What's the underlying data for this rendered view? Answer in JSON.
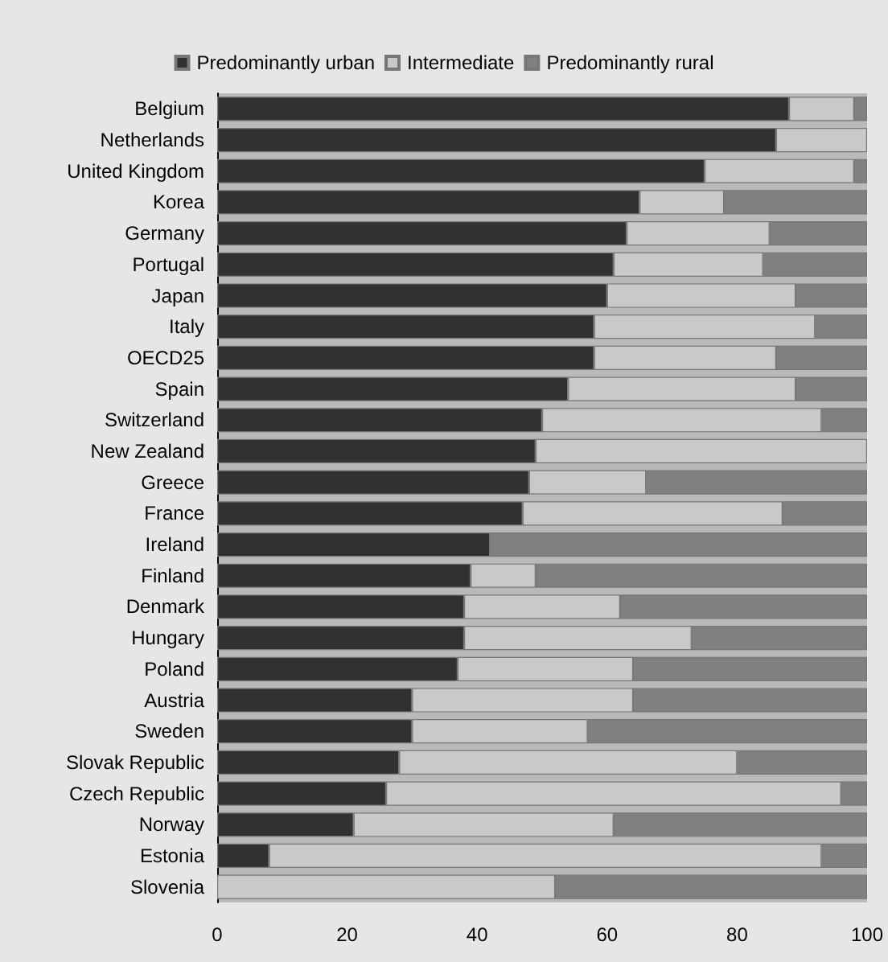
{
  "chart_data": {
    "type": "bar",
    "orientation": "horizontal",
    "stacked": true,
    "categories": [
      "Belgium",
      "Netherlands",
      "United Kingdom",
      "Korea",
      "Germany",
      "Portugal",
      "Japan",
      "Italy",
      "OECD25",
      "Spain",
      "Switzerland",
      "New Zealand",
      "Greece",
      "France",
      "Ireland",
      "Finland",
      "Denmark",
      "Hungary",
      "Poland",
      "Austria",
      "Sweden",
      "Slovak Republic",
      "Czech Republic",
      "Norway",
      "Estonia",
      "Slovenia"
    ],
    "series": [
      {
        "name": "Predominantly urban",
        "color": "#333033",
        "values": [
          88,
          86,
          75,
          65,
          63,
          61,
          60,
          58,
          58,
          54,
          50,
          49,
          48,
          47,
          42,
          39,
          38,
          38,
          37,
          30,
          30,
          28,
          26,
          21,
          8,
          0
        ]
      },
      {
        "name": "Intermediate",
        "color": "#c8c9cb",
        "values": [
          10,
          14,
          23,
          13,
          22,
          23,
          29,
          34,
          28,
          35,
          43,
          51,
          18,
          40,
          0,
          10,
          24,
          35,
          27,
          34,
          27,
          52,
          70,
          40,
          85,
          52
        ]
      },
      {
        "name": "Predominantly rural",
        "color": "#808083",
        "values": [
          2,
          0,
          2,
          22,
          15,
          16,
          11,
          8,
          14,
          11,
          7,
          0,
          34,
          13,
          58,
          51,
          38,
          27,
          36,
          36,
          43,
          20,
          4,
          39,
          7,
          48
        ]
      }
    ],
    "xlim": [
      0,
      100
    ],
    "xticks": [
      0,
      20,
      40,
      60,
      80,
      100
    ],
    "grid": false,
    "legend": "top"
  }
}
